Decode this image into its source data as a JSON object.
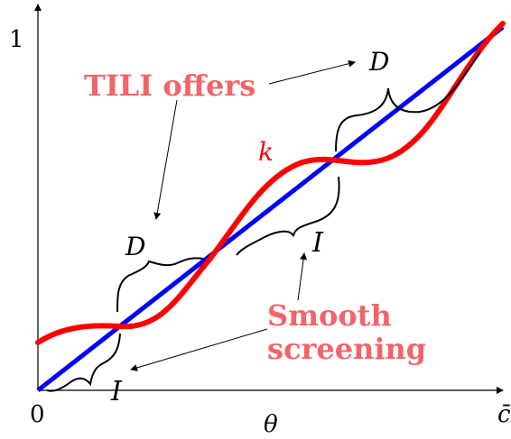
{
  "axes": {
    "x_label": "θ",
    "y_tick_top": "1",
    "x_tick_origin": "0",
    "x_tick_end": "c̄"
  },
  "labels": {
    "k_curve": "k",
    "tili_offers": "TILI offers",
    "smooth_line1": "Smooth",
    "smooth_line2": "screening",
    "D_top": "D",
    "D_left": "D",
    "I_mid": "I",
    "I_bottom": "I"
  },
  "colors": {
    "identity_line": "#0000ff",
    "k_curve": "#ff0000",
    "annotation_text": "#f26468",
    "axis": "#000000"
  }
}
